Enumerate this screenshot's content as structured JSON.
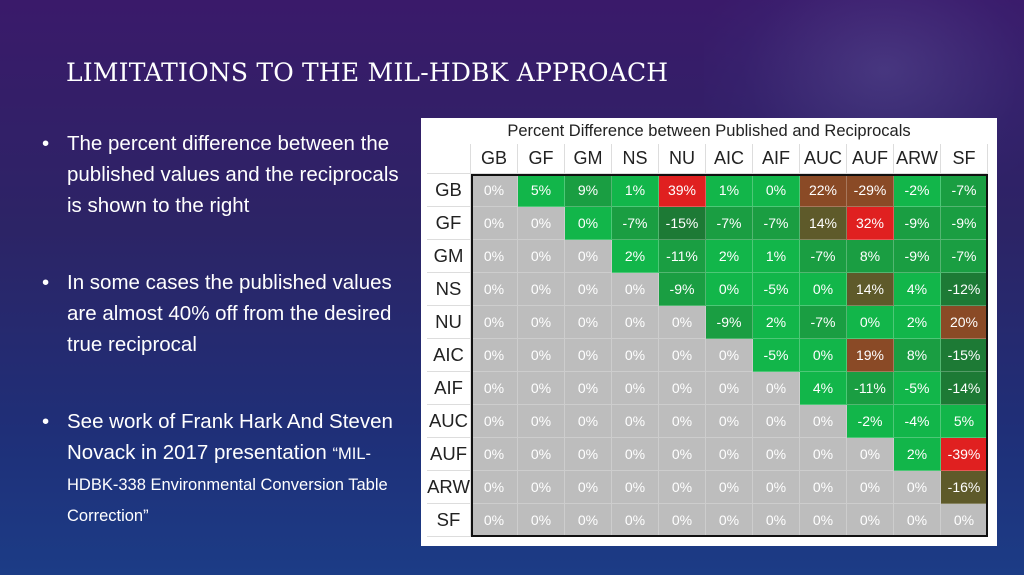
{
  "slide": {
    "title": "LIMITATIONS TO THE MIL-HDBK APPROACH",
    "bullets": [
      "The percent difference between the published values and the reciprocals is shown to the right",
      "In some cases the published values are almost 40% off from the desired true reciprocal",
      "See work of Frank Hark And Steven Novack in 2017 presentation"
    ],
    "bullet3_small": "“MIL-HDBK-338 Environmental Conversion Table Correction”",
    "bullet_glyph": "•"
  },
  "chart_data": {
    "type": "table",
    "title": "Percent Difference between Published and Reciprocals",
    "columns": [
      "GB",
      "GF",
      "GM",
      "NS",
      "NU",
      "AIC",
      "AIF",
      "AUC",
      "AUF",
      "ARW",
      "SF"
    ],
    "rows": [
      "GB",
      "GF",
      "GM",
      "NS",
      "NU",
      "AIC",
      "AIF",
      "AUC",
      "AUF",
      "ARW",
      "SF"
    ],
    "values": [
      [
        "0%",
        "5%",
        "9%",
        "1%",
        "39%",
        "1%",
        "0%",
        "22%",
        "-29%",
        "-2%",
        "-7%"
      ],
      [
        "0%",
        "0%",
        "0%",
        "-7%",
        "-15%",
        "-7%",
        "-7%",
        "14%",
        "32%",
        "-9%",
        "-9%"
      ],
      [
        "0%",
        "0%",
        "0%",
        "2%",
        "-11%",
        "2%",
        "1%",
        "-7%",
        "8%",
        "-9%",
        "-7%"
      ],
      [
        "0%",
        "0%",
        "0%",
        "0%",
        "-9%",
        "0%",
        "-5%",
        "0%",
        "14%",
        "4%",
        "-12%"
      ],
      [
        "0%",
        "0%",
        "0%",
        "0%",
        "0%",
        "-9%",
        "2%",
        "-7%",
        "0%",
        "2%",
        "20%"
      ],
      [
        "0%",
        "0%",
        "0%",
        "0%",
        "0%",
        "0%",
        "-5%",
        "0%",
        "19%",
        "8%",
        "-15%"
      ],
      [
        "0%",
        "0%",
        "0%",
        "0%",
        "0%",
        "0%",
        "0%",
        "4%",
        "-11%",
        "-5%",
        "-14%"
      ],
      [
        "0%",
        "0%",
        "0%",
        "0%",
        "0%",
        "0%",
        "0%",
        "0%",
        "-2%",
        "-4%",
        "5%"
      ],
      [
        "0%",
        "0%",
        "0%",
        "0%",
        "0%",
        "0%",
        "0%",
        "0%",
        "0%",
        "2%",
        "-39%"
      ],
      [
        "0%",
        "0%",
        "0%",
        "0%",
        "0%",
        "0%",
        "0%",
        "0%",
        "0%",
        "0%",
        "-16%"
      ],
      [
        "0%",
        "0%",
        "0%",
        "0%",
        "0%",
        "0%",
        "0%",
        "0%",
        "0%",
        "0%",
        "0%"
      ]
    ],
    "colors": {
      "lower_and_diagonal": "#bdbdbd",
      "green_strong": "#12b64a",
      "green": "#1a9e42",
      "green_dark": "#1d7a35",
      "olive": "#5e5a2a",
      "brown": "#8a4a26",
      "red": "#e02020"
    }
  }
}
